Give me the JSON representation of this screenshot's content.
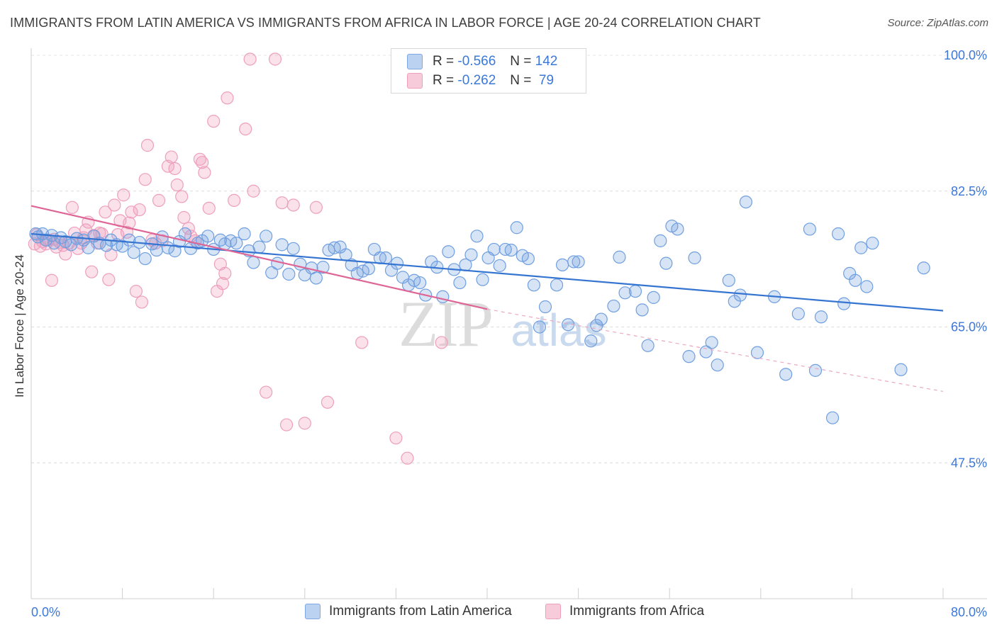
{
  "header": {
    "title": "IMMIGRANTS FROM LATIN AMERICA VS IMMIGRANTS FROM AFRICA IN LABOR FORCE | AGE 20-24 CORRELATION CHART",
    "source": "Source: ZipAtlas.com"
  },
  "legend": {
    "rows": [
      {
        "r_label": "R =",
        "r_value": "-0.566",
        "n_label": "N =",
        "n_value": "142"
      },
      {
        "r_label": "R =",
        "r_value": "-0.262",
        "n_label": "N =",
        "n_value": " 79"
      }
    ]
  },
  "bottom_legend": {
    "items": [
      "Immigrants from Latin America",
      "Immigrants from Africa"
    ]
  },
  "watermark": {
    "zip": "ZIP",
    "atlas": "atlas"
  },
  "chart_data": {
    "type": "scatter",
    "ylabel": "In Labor Force | Age 20-24",
    "xlim": [
      0,
      80
    ],
    "ylim": [
      30,
      100
    ],
    "x_tick_labels": [
      "0.0%",
      "80.0%"
    ],
    "y_ticks": [
      47.5,
      65.0,
      82.5,
      100.0
    ],
    "y_tick_labels": [
      "47.5%",
      "65.0%",
      "82.5%",
      "100.0%"
    ],
    "grid": true,
    "colors": {
      "latin": "#6f9fe0",
      "africa": "#f1a1bd",
      "latin_line": "#3575d1",
      "africa_line": "#de6595"
    },
    "series": [
      {
        "name": "Immigrants from Latin America",
        "regression": {
          "x": [
            0,
            80
          ],
          "y": [
            77.0,
            67.1
          ]
        },
        "points": [
          [
            0.4,
            77.0
          ],
          [
            0.6,
            76.6
          ],
          [
            1.0,
            77.0
          ],
          [
            1.3,
            76.2
          ],
          [
            1.8,
            76.8
          ],
          [
            2.0,
            75.8
          ],
          [
            2.6,
            76.5
          ],
          [
            3.0,
            76.0
          ],
          [
            3.5,
            75.6
          ],
          [
            4.0,
            76.4
          ],
          [
            4.6,
            76.2
          ],
          [
            5.0,
            75.2
          ],
          [
            5.5,
            76.7
          ],
          [
            6.0,
            75.8
          ],
          [
            6.6,
            75.5
          ],
          [
            7.0,
            76.2
          ],
          [
            7.5,
            75.6
          ],
          [
            8.0,
            75.4
          ],
          [
            8.6,
            76.2
          ],
          [
            9.0,
            74.6
          ],
          [
            9.5,
            75.9
          ],
          [
            10.0,
            73.8
          ],
          [
            10.6,
            75.7
          ],
          [
            11.0,
            74.9
          ],
          [
            11.5,
            76.6
          ],
          [
            12.0,
            75.2
          ],
          [
            12.6,
            74.8
          ],
          [
            13.0,
            76.0
          ],
          [
            13.5,
            77.0
          ],
          [
            14.0,
            75.1
          ],
          [
            14.6,
            75.8
          ],
          [
            15.0,
            76.1
          ],
          [
            15.5,
            76.7
          ],
          [
            16.0,
            75.0
          ],
          [
            16.6,
            76.2
          ],
          [
            17.0,
            75.7
          ],
          [
            17.5,
            76.1
          ],
          [
            18.0,
            75.8
          ],
          [
            18.7,
            77.0
          ],
          [
            19.1,
            74.8
          ],
          [
            19.5,
            73.3
          ],
          [
            20.0,
            75.3
          ],
          [
            20.6,
            76.7
          ],
          [
            21.1,
            72.0
          ],
          [
            21.6,
            73.2
          ],
          [
            22.0,
            75.6
          ],
          [
            22.6,
            71.8
          ],
          [
            23.0,
            75.1
          ],
          [
            23.6,
            73.1
          ],
          [
            24.0,
            71.7
          ],
          [
            24.6,
            72.6
          ],
          [
            25.0,
            71.3
          ],
          [
            25.6,
            72.7
          ],
          [
            26.1,
            74.9
          ],
          [
            26.6,
            75.2
          ],
          [
            27.1,
            75.3
          ],
          [
            27.6,
            74.3
          ],
          [
            28.1,
            73.0
          ],
          [
            28.6,
            71.9
          ],
          [
            29.1,
            72.2
          ],
          [
            29.6,
            72.5
          ],
          [
            30.1,
            75.0
          ],
          [
            30.6,
            73.9
          ],
          [
            31.1,
            73.9
          ],
          [
            31.6,
            72.3
          ],
          [
            32.1,
            73.2
          ],
          [
            32.6,
            71.4
          ],
          [
            33.1,
            70.4
          ],
          [
            33.6,
            71.0
          ],
          [
            34.1,
            70.7
          ],
          [
            34.6,
            69.1
          ],
          [
            35.1,
            73.4
          ],
          [
            35.6,
            72.7
          ],
          [
            36.1,
            68.9
          ],
          [
            36.6,
            74.7
          ],
          [
            37.1,
            72.4
          ],
          [
            37.6,
            70.7
          ],
          [
            38.1,
            73.0
          ],
          [
            38.6,
            74.3
          ],
          [
            39.1,
            76.7
          ],
          [
            39.6,
            71.1
          ],
          [
            40.1,
            73.9
          ],
          [
            40.6,
            75.0
          ],
          [
            41.1,
            72.9
          ],
          [
            41.6,
            75.0
          ],
          [
            42.1,
            74.9
          ],
          [
            42.6,
            77.8
          ],
          [
            43.1,
            74.2
          ],
          [
            43.6,
            73.8
          ],
          [
            44.1,
            70.4
          ],
          [
            44.6,
            65.0
          ],
          [
            45.1,
            67.6
          ],
          [
            46.1,
            70.4
          ],
          [
            46.6,
            73.0
          ],
          [
            47.1,
            65.3
          ],
          [
            47.6,
            73.4
          ],
          [
            48.0,
            73.4
          ],
          [
            49.1,
            63.2
          ],
          [
            49.6,
            65.2
          ],
          [
            50.0,
            66.0
          ],
          [
            51.1,
            67.7
          ],
          [
            51.6,
            74.0
          ],
          [
            52.1,
            69.4
          ],
          [
            53.0,
            69.6
          ],
          [
            53.6,
            67.2
          ],
          [
            54.1,
            62.6
          ],
          [
            54.6,
            68.8
          ],
          [
            55.2,
            76.1
          ],
          [
            55.7,
            73.2
          ],
          [
            56.2,
            78.0
          ],
          [
            56.7,
            77.6
          ],
          [
            57.7,
            61.2
          ],
          [
            58.2,
            73.9
          ],
          [
            59.2,
            61.8
          ],
          [
            59.7,
            63.0
          ],
          [
            60.2,
            60.1
          ],
          [
            61.2,
            71.0
          ],
          [
            61.7,
            68.3
          ],
          [
            62.2,
            69.1
          ],
          [
            62.7,
            81.1
          ],
          [
            63.7,
            61.7
          ],
          [
            65.2,
            68.9
          ],
          [
            66.2,
            58.9
          ],
          [
            67.3,
            66.7
          ],
          [
            68.3,
            77.6
          ],
          [
            68.8,
            59.4
          ],
          [
            69.3,
            66.3
          ],
          [
            70.3,
            53.3
          ],
          [
            70.8,
            77.0
          ],
          [
            71.3,
            68.0
          ],
          [
            71.8,
            71.9
          ],
          [
            72.3,
            71.0
          ],
          [
            72.8,
            75.2
          ],
          [
            73.3,
            70.2
          ],
          [
            73.8,
            75.8
          ],
          [
            76.3,
            59.5
          ],
          [
            78.3,
            72.6
          ]
        ]
      },
      {
        "name": "Immigrants from Africa",
        "regression": {
          "x": [
            0,
            40
          ],
          "y": [
            80.6,
            67.3
          ]
        },
        "regression_extended": {
          "x": [
            40,
            80
          ],
          "y": [
            67.3,
            56.7
          ]
        },
        "points": [
          [
            0.3,
            75.7
          ],
          [
            0.5,
            76.9
          ],
          [
            0.8,
            75.4
          ],
          [
            1.0,
            76.0
          ],
          [
            1.3,
            75.7
          ],
          [
            1.5,
            76.2
          ],
          [
            1.8,
            71.0
          ],
          [
            2.0,
            76.3
          ],
          [
            2.2,
            75.3
          ],
          [
            2.5,
            75.9
          ],
          [
            2.8,
            75.5
          ],
          [
            3.0,
            74.4
          ],
          [
            3.3,
            75.8
          ],
          [
            3.6,
            80.4
          ],
          [
            3.8,
            77.1
          ],
          [
            4.1,
            75.1
          ],
          [
            4.4,
            75.8
          ],
          [
            4.6,
            76.5
          ],
          [
            4.8,
            77.5
          ],
          [
            5.0,
            78.5
          ],
          [
            5.3,
            72.1
          ],
          [
            5.5,
            76.8
          ],
          [
            5.8,
            75.8
          ],
          [
            6.0,
            77.1
          ],
          [
            6.2,
            77.0
          ],
          [
            6.5,
            79.8
          ],
          [
            6.8,
            71.1
          ],
          [
            7.0,
            74.3
          ],
          [
            7.3,
            80.7
          ],
          [
            7.6,
            76.9
          ],
          [
            7.8,
            78.7
          ],
          [
            8.1,
            82.0
          ],
          [
            8.4,
            77.2
          ],
          [
            8.6,
            78.4
          ],
          [
            8.8,
            79.8
          ],
          [
            9.2,
            69.6
          ],
          [
            9.5,
            80.1
          ],
          [
            9.7,
            68.2
          ],
          [
            10.0,
            84.0
          ],
          [
            10.2,
            88.4
          ],
          [
            10.6,
            76.2
          ],
          [
            10.9,
            75.8
          ],
          [
            11.2,
            81.3
          ],
          [
            11.5,
            76.1
          ],
          [
            12.0,
            85.7
          ],
          [
            12.3,
            86.9
          ],
          [
            12.6,
            85.4
          ],
          [
            12.8,
            83.3
          ],
          [
            13.2,
            81.8
          ],
          [
            13.4,
            79.1
          ],
          [
            13.8,
            77.7
          ],
          [
            14.0,
            76.7
          ],
          [
            14.4,
            76.1
          ],
          [
            14.8,
            86.6
          ],
          [
            15.0,
            86.2
          ],
          [
            15.2,
            84.9
          ],
          [
            15.6,
            80.3
          ],
          [
            16.0,
            91.5
          ],
          [
            16.3,
            69.6
          ],
          [
            16.6,
            73.1
          ],
          [
            16.8,
            70.6
          ],
          [
            17.0,
            71.9
          ],
          [
            17.2,
            94.5
          ],
          [
            17.8,
            81.3
          ],
          [
            18.8,
            90.5
          ],
          [
            19.2,
            99.5
          ],
          [
            19.5,
            82.5
          ],
          [
            20.6,
            56.6
          ],
          [
            21.4,
            99.5
          ],
          [
            22.0,
            81.0
          ],
          [
            22.4,
            52.4
          ],
          [
            23.0,
            80.7
          ],
          [
            24.0,
            52.6
          ],
          [
            25.0,
            80.4
          ],
          [
            26.0,
            55.3
          ],
          [
            29.0,
            63.0
          ],
          [
            32.0,
            50.7
          ],
          [
            33.0,
            48.1
          ],
          [
            36.0,
            63.0
          ]
        ]
      }
    ]
  }
}
